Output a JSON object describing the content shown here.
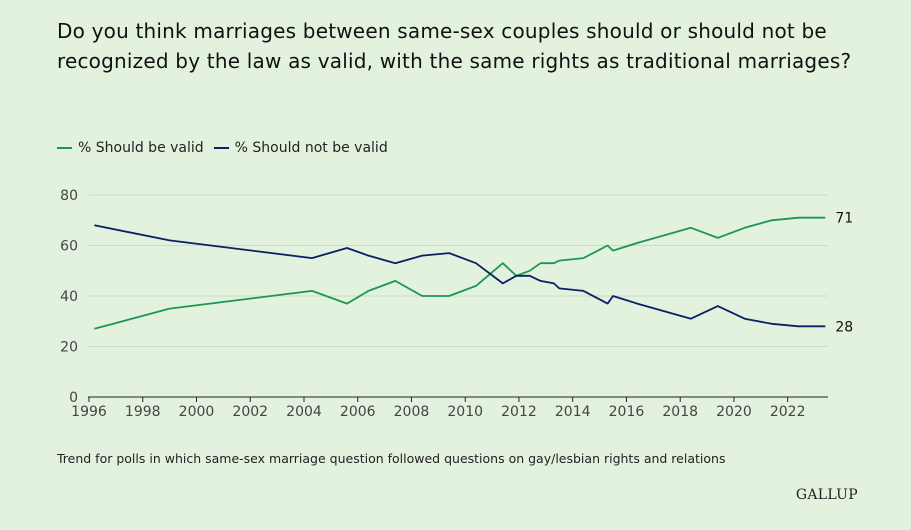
{
  "title": "Do you think marriages between same-sex couples should or should not be recognized by the law as valid, with the same rights as traditional marriages?",
  "footnote": "Trend for polls in which same-sex marriage question followed questions on gay/lesbian rights and relations",
  "brand": "GALLUP",
  "chart_data": {
    "type": "line",
    "legend_placement": "top-left",
    "grid": true,
    "xlabel": "",
    "ylabel": "",
    "xlim": [
      1996,
      2023.5
    ],
    "ylim": [
      0,
      80
    ],
    "x_ticks": [
      "1996",
      "1998",
      "2000",
      "2002",
      "2004",
      "2006",
      "2008",
      "2010",
      "2012",
      "2014",
      "2016",
      "2018",
      "2020",
      "2022"
    ],
    "y_ticks": [
      "0",
      "20",
      "40",
      "60",
      "80"
    ],
    "series": [
      {
        "name": "% Should be valid",
        "color": "#1a9850",
        "end_label": "71",
        "points": [
          [
            1996.2,
            27
          ],
          [
            1999.0,
            35
          ],
          [
            2004.3,
            42
          ],
          [
            2005.6,
            37
          ],
          [
            2006.4,
            42
          ],
          [
            2007.4,
            46
          ],
          [
            2008.4,
            40
          ],
          [
            2009.4,
            40
          ],
          [
            2010.4,
            44
          ],
          [
            2011.4,
            53
          ],
          [
            2011.9,
            48
          ],
          [
            2012.4,
            50
          ],
          [
            2012.8,
            53
          ],
          [
            2013.3,
            53
          ],
          [
            2013.5,
            54
          ],
          [
            2014.4,
            55
          ],
          [
            2015.3,
            60
          ],
          [
            2015.5,
            58
          ],
          [
            2016.4,
            61
          ],
          [
            2018.4,
            67
          ],
          [
            2019.4,
            63
          ],
          [
            2020.4,
            67
          ],
          [
            2021.4,
            70
          ],
          [
            2022.4,
            71
          ],
          [
            2023.4,
            71
          ]
        ]
      },
      {
        "name": "% Should not be valid",
        "color": "#0a1f66",
        "end_label": "28",
        "points": [
          [
            1996.2,
            68
          ],
          [
            1999.0,
            62
          ],
          [
            2004.3,
            55
          ],
          [
            2005.6,
            59
          ],
          [
            2006.4,
            56
          ],
          [
            2007.4,
            53
          ],
          [
            2008.4,
            56
          ],
          [
            2009.4,
            57
          ],
          [
            2010.4,
            53
          ],
          [
            2011.4,
            45
          ],
          [
            2011.9,
            48
          ],
          [
            2012.4,
            48
          ],
          [
            2012.8,
            46
          ],
          [
            2013.3,
            45
          ],
          [
            2013.5,
            43
          ],
          [
            2014.4,
            42
          ],
          [
            2015.3,
            37
          ],
          [
            2015.5,
            40
          ],
          [
            2016.4,
            37
          ],
          [
            2018.4,
            31
          ],
          [
            2019.4,
            36
          ],
          [
            2020.4,
            31
          ],
          [
            2021.4,
            29
          ],
          [
            2022.4,
            28
          ],
          [
            2023.4,
            28
          ]
        ]
      }
    ]
  }
}
